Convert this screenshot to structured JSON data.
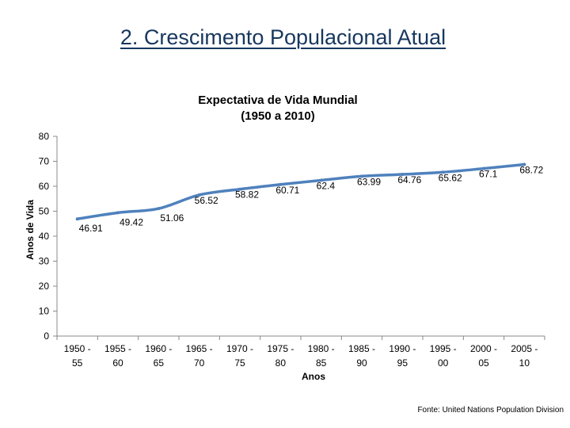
{
  "slide": {
    "title": "2. Crescimento Populacional Atual",
    "source": "Fonte: United  Nations Population Division"
  },
  "chart_data": {
    "type": "line",
    "title_lines": [
      "Expectativa de Vida Mundial",
      "(1950 a 2010)"
    ],
    "xlabel": "Anos",
    "ylabel": "Anos de Vida",
    "categories": [
      [
        "1950 -",
        "55"
      ],
      [
        "1955 -",
        "60"
      ],
      [
        "1960 -",
        "65"
      ],
      [
        "1965 -",
        "70"
      ],
      [
        "1970 -",
        "75"
      ],
      [
        "1975 -",
        "80"
      ],
      [
        "1980 -",
        "85"
      ],
      [
        "1985 -",
        "90"
      ],
      [
        "1990 -",
        "95"
      ],
      [
        "1995 -",
        "00"
      ],
      [
        "2000 -",
        "05"
      ],
      [
        "2005 -",
        "10"
      ]
    ],
    "values": [
      46.91,
      49.42,
      51.06,
      56.52,
      58.82,
      60.71,
      62.4,
      63.99,
      64.76,
      65.62,
      67.1,
      68.72
    ],
    "data_labels": [
      "46.91",
      "49.42",
      "51.06",
      "56.52",
      "58.82",
      "60.71",
      "62.4",
      "63.99",
      "64.76",
      "65.62",
      "67.1",
      "68.72"
    ],
    "yticks": [
      0,
      10,
      20,
      30,
      40,
      50,
      60,
      70,
      80
    ],
    "ylim": [
      0,
      80
    ],
    "grid": false,
    "legend": "none",
    "line_color": "#4f81bd"
  }
}
